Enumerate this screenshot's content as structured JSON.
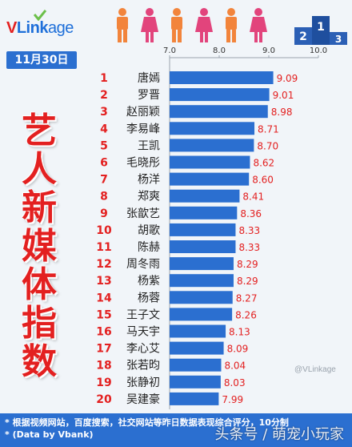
{
  "brand": {
    "logo_text_prefix": "V",
    "logo_text_mid": "Link",
    "logo_text_suffix": "age",
    "logo_icon": "vlinkage-logo-icon"
  },
  "decor": {
    "people_icon": "people-figures-icon",
    "podium_icon": "podium-123-icon",
    "podium_numbers": [
      "2",
      "1",
      "3"
    ]
  },
  "date_label": "11月30日",
  "side_title": [
    "艺",
    "人",
    "新",
    "媒",
    "体",
    "指",
    "数"
  ],
  "colors": {
    "accent": "#2b6fd0",
    "bar": "#2b6fd0",
    "rank": "#e32020",
    "value": "#e32020",
    "title": "#e32020"
  },
  "chart_data": {
    "type": "bar",
    "orientation": "horizontal",
    "xlim": [
      7.0,
      10.0
    ],
    "xticks": [
      "7.0",
      "8.0",
      "9.0",
      "10.0"
    ],
    "grid": false,
    "ranks": [
      "1",
      "2",
      "3",
      "4",
      "5",
      "6",
      "7",
      "8",
      "9",
      "10",
      "11",
      "12",
      "13",
      "14",
      "15",
      "16",
      "17",
      "18",
      "19",
      "20"
    ],
    "categories": [
      "唐嫣",
      "罗晋",
      "赵丽颖",
      "李易峰",
      "王凯",
      "毛晓彤",
      "杨洋",
      "郑爽",
      "张歆艺",
      "胡歌",
      "陈赫",
      "周冬雨",
      "杨紫",
      "杨蓉",
      "王子文",
      "马天宇",
      "李心艾",
      "张若昀",
      "张静初",
      "吴建豪"
    ],
    "values": [
      9.09,
      9.01,
      8.98,
      8.71,
      8.7,
      8.62,
      8.6,
      8.41,
      8.36,
      8.33,
      8.33,
      8.29,
      8.29,
      8.27,
      8.26,
      8.13,
      8.09,
      8.04,
      8.03,
      7.99
    ],
    "value_labels": [
      "9.09",
      "9.01",
      "8.98",
      "8.71",
      "8.70",
      "8.62",
      "8.60",
      "8.41",
      "8.36",
      "8.33",
      "8.33",
      "8.29",
      "8.29",
      "8.27",
      "8.26",
      "8.13",
      "8.09",
      "8.04",
      "8.03",
      "7.99"
    ]
  },
  "footer": {
    "line1": "* 根据视频网站，百度搜索，社交网站等昨日数据表现综合评分，10分制",
    "line2": "* (Data by Vbank)"
  },
  "watermark_small": "@VLinkage",
  "watermark": "头条号 / 萌宠小玩家"
}
